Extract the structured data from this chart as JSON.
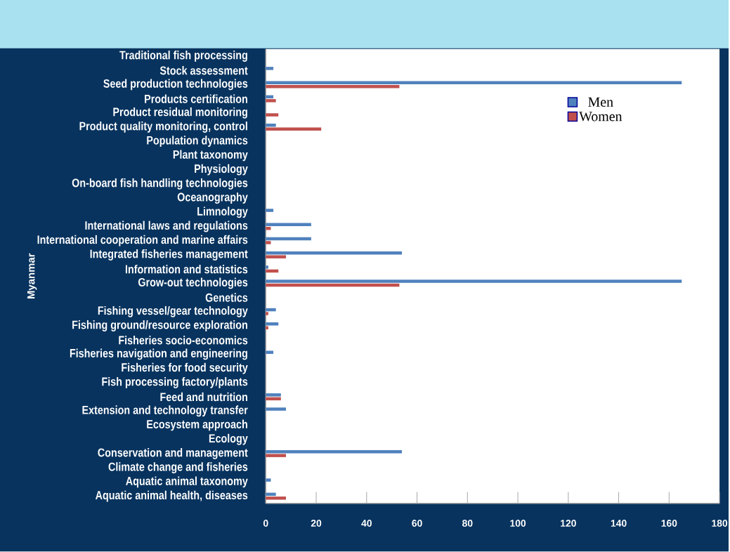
{
  "chart_data": {
    "type": "bar",
    "orientation": "horizontal",
    "ylabel": "Myanmar",
    "categories": [
      "Traditional fish processing",
      "Stock assessment",
      "Seed production technologies",
      "Products certification",
      "Product residual monitoring",
      "Product quality monitoring, control",
      "Population dynamics",
      "Plant taxonomy",
      "Physiology",
      "On-board fish handling technologies",
      "Oceanography",
      "Limnology",
      "International laws and regulations",
      "International cooperation and marine affairs",
      "Integrated fisheries management",
      "Information and statistics",
      "Grow-out technologies",
      "Genetics",
      "Fishing vessel/gear technology",
      "Fishing ground/resource exploration",
      "Fisheries socio-economics",
      "Fisheries navigation and engineering",
      "Fisheries for food security",
      "Fish processing factory/plants",
      "Feed and nutrition",
      "Extension and technology transfer",
      "Ecosystem approach",
      "Ecology",
      "Conservation and management",
      "Climate change and fisheries",
      "Aquatic animal taxonomy",
      "Aquatic animal health, diseases"
    ],
    "series": [
      {
        "name": "Men",
        "color": "#4f81bd",
        "values": [
          0,
          3,
          165,
          3,
          0,
          4,
          0,
          0,
          0,
          0,
          0,
          3,
          18,
          18,
          54,
          1,
          165,
          0,
          4,
          5,
          0,
          3,
          0,
          0,
          6,
          8,
          0,
          0,
          54,
          0,
          2,
          4
        ]
      },
      {
        "name": "Women",
        "color": "#c0504d",
        "values": [
          0,
          0,
          53,
          4,
          5,
          22,
          0,
          0,
          0,
          0,
          0,
          0,
          2,
          2,
          8,
          5,
          53,
          0,
          1,
          1,
          0,
          0,
          0,
          0,
          6,
          0,
          0,
          0,
          8,
          0,
          0,
          8
        ]
      }
    ],
    "xlim": [
      0,
      180
    ],
    "xticks": [
      0,
      20,
      40,
      60,
      80,
      100,
      120,
      140,
      160,
      180
    ],
    "legend": "top right"
  }
}
